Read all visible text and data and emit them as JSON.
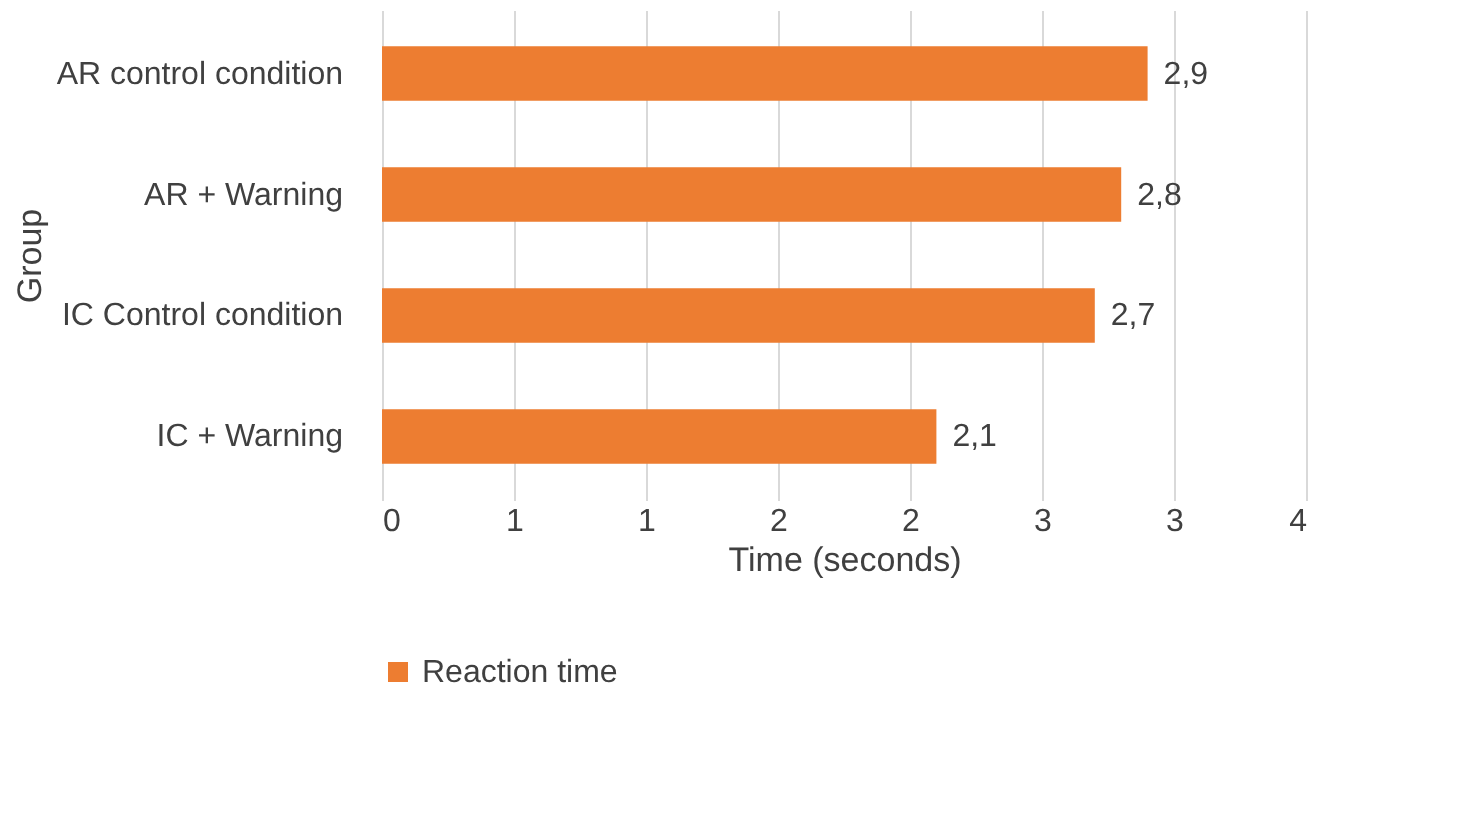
{
  "chart_data": {
    "type": "bar",
    "orientation": "horizontal",
    "xlabel": "Time (seconds)",
    "ylabel": "Group",
    "categories": [
      "AR control condition",
      "AR + Warning",
      "IC Control condition",
      "IC + Warning"
    ],
    "series": [
      {
        "name": "Reaction time",
        "color": "#ed7d31",
        "values": [
          2.9,
          2.8,
          2.7,
          2.1
        ]
      }
    ],
    "value_labels": [
      "2,9",
      "2,8",
      "2,7",
      "2,1"
    ],
    "xlim": [
      0,
      3.5
    ],
    "xticks": [
      {
        "value": 0,
        "label": "0"
      },
      {
        "value": 0.5,
        "label": "1"
      },
      {
        "value": 1,
        "label": "1"
      },
      {
        "value": 1.5,
        "label": "2"
      },
      {
        "value": 2,
        "label": "2"
      },
      {
        "value": 2.5,
        "label": "3"
      },
      {
        "value": 3,
        "label": "3"
      },
      {
        "value": 3.5,
        "label": "4"
      }
    ],
    "grid": "x",
    "legend": "bottom"
  }
}
